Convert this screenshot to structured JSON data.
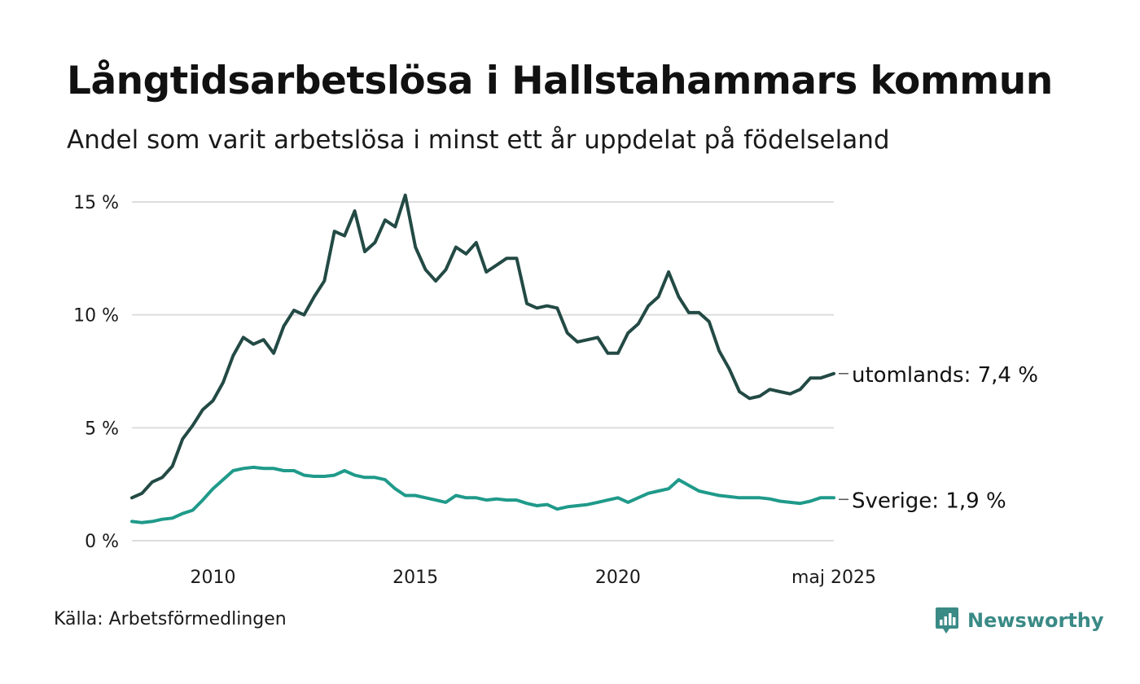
{
  "header": {
    "title": "Långtidsarbetslösa i Hallstahammars kommun",
    "subtitle": "Andel som varit arbetslösa i minst ett år uppdelat på födelseland"
  },
  "footer": {
    "source": "Källa: Arbetsförmedlingen",
    "brand": "Newsworthy"
  },
  "colors": {
    "utomlands": "#234a45",
    "sverige": "#1f9a8a",
    "grid": "#dddddd",
    "brand": "#3a8a86"
  },
  "icons": {
    "brand": "chart-bubble-icon"
  },
  "chart_data": {
    "type": "line",
    "title": "Långtidsarbetslösa i Hallstahammars kommun",
    "subtitle": "Andel som varit arbetslösa i minst ett år uppdelat på födelseland",
    "xlabel": "",
    "ylabel": "",
    "x_range": [
      2008.0,
      2025.33
    ],
    "ylim": [
      0,
      15
    ],
    "y_ticks": [
      0,
      5,
      10,
      15
    ],
    "y_tick_labels": [
      "0 %",
      "5 %",
      "10 %",
      "15 %"
    ],
    "x_ticks": [
      2010,
      2015,
      2020,
      2025.33
    ],
    "x_tick_labels": [
      "2010",
      "2015",
      "2020",
      "maj 2025"
    ],
    "grid": "horizontal",
    "legend": "end-of-line labels",
    "series": [
      {
        "key": "utomlands",
        "end_label": "utomlands: 7,4 %",
        "points": [
          [
            2008.0,
            1.9
          ],
          [
            2008.25,
            2.1
          ],
          [
            2008.5,
            2.6
          ],
          [
            2008.75,
            2.8
          ],
          [
            2009.0,
            3.3
          ],
          [
            2009.25,
            4.5
          ],
          [
            2009.5,
            5.1
          ],
          [
            2009.75,
            5.8
          ],
          [
            2010.0,
            6.2
          ],
          [
            2010.25,
            7.0
          ],
          [
            2010.5,
            8.2
          ],
          [
            2010.75,
            9.0
          ],
          [
            2011.0,
            8.7
          ],
          [
            2011.25,
            8.9
          ],
          [
            2011.5,
            8.3
          ],
          [
            2011.75,
            9.5
          ],
          [
            2012.0,
            10.2
          ],
          [
            2012.25,
            10.0
          ],
          [
            2012.5,
            10.8
          ],
          [
            2012.75,
            11.5
          ],
          [
            2013.0,
            13.7
          ],
          [
            2013.25,
            13.5
          ],
          [
            2013.5,
            14.6
          ],
          [
            2013.75,
            12.8
          ],
          [
            2014.0,
            13.2
          ],
          [
            2014.25,
            14.2
          ],
          [
            2014.5,
            13.9
          ],
          [
            2014.75,
            15.3
          ],
          [
            2015.0,
            13.0
          ],
          [
            2015.25,
            12.0
          ],
          [
            2015.5,
            11.5
          ],
          [
            2015.75,
            12.0
          ],
          [
            2016.0,
            13.0
          ],
          [
            2016.25,
            12.7
          ],
          [
            2016.5,
            13.2
          ],
          [
            2016.75,
            11.9
          ],
          [
            2017.0,
            12.2
          ],
          [
            2017.25,
            12.5
          ],
          [
            2017.5,
            12.5
          ],
          [
            2017.75,
            10.5
          ],
          [
            2018.0,
            10.3
          ],
          [
            2018.25,
            10.4
          ],
          [
            2018.5,
            10.3
          ],
          [
            2018.75,
            9.2
          ],
          [
            2019.0,
            8.8
          ],
          [
            2019.25,
            8.9
          ],
          [
            2019.5,
            9.0
          ],
          [
            2019.75,
            8.3
          ],
          [
            2020.0,
            8.3
          ],
          [
            2020.25,
            9.2
          ],
          [
            2020.5,
            9.6
          ],
          [
            2020.75,
            10.4
          ],
          [
            2021.0,
            10.8
          ],
          [
            2021.25,
            11.9
          ],
          [
            2021.5,
            10.8
          ],
          [
            2021.75,
            10.1
          ],
          [
            2022.0,
            10.1
          ],
          [
            2022.25,
            9.7
          ],
          [
            2022.5,
            8.4
          ],
          [
            2022.75,
            7.6
          ],
          [
            2023.0,
            6.6
          ],
          [
            2023.25,
            6.3
          ],
          [
            2023.5,
            6.4
          ],
          [
            2023.75,
            6.7
          ],
          [
            2024.0,
            6.6
          ],
          [
            2024.25,
            6.5
          ],
          [
            2024.5,
            6.7
          ],
          [
            2024.75,
            7.2
          ],
          [
            2025.0,
            7.2
          ],
          [
            2025.33,
            7.4
          ]
        ]
      },
      {
        "key": "sverige",
        "end_label": "Sverige: 1,9 %",
        "points": [
          [
            2008.0,
            0.85
          ],
          [
            2008.25,
            0.8
          ],
          [
            2008.5,
            0.85
          ],
          [
            2008.75,
            0.95
          ],
          [
            2009.0,
            1.0
          ],
          [
            2009.25,
            1.2
          ],
          [
            2009.5,
            1.35
          ],
          [
            2009.75,
            1.8
          ],
          [
            2010.0,
            2.3
          ],
          [
            2010.25,
            2.7
          ],
          [
            2010.5,
            3.1
          ],
          [
            2010.75,
            3.2
          ],
          [
            2011.0,
            3.25
          ],
          [
            2011.25,
            3.2
          ],
          [
            2011.5,
            3.2
          ],
          [
            2011.75,
            3.1
          ],
          [
            2012.0,
            3.1
          ],
          [
            2012.25,
            2.9
          ],
          [
            2012.5,
            2.85
          ],
          [
            2012.75,
            2.85
          ],
          [
            2013.0,
            2.9
          ],
          [
            2013.25,
            3.1
          ],
          [
            2013.5,
            2.9
          ],
          [
            2013.75,
            2.8
          ],
          [
            2014.0,
            2.8
          ],
          [
            2014.25,
            2.7
          ],
          [
            2014.5,
            2.3
          ],
          [
            2014.75,
            2.0
          ],
          [
            2015.0,
            2.0
          ],
          [
            2015.25,
            1.9
          ],
          [
            2015.5,
            1.8
          ],
          [
            2015.75,
            1.7
          ],
          [
            2016.0,
            2.0
          ],
          [
            2016.25,
            1.9
          ],
          [
            2016.5,
            1.9
          ],
          [
            2016.75,
            1.8
          ],
          [
            2017.0,
            1.85
          ],
          [
            2017.25,
            1.8
          ],
          [
            2017.5,
            1.8
          ],
          [
            2017.75,
            1.65
          ],
          [
            2018.0,
            1.55
          ],
          [
            2018.25,
            1.6
          ],
          [
            2018.5,
            1.4
          ],
          [
            2018.75,
            1.5
          ],
          [
            2019.0,
            1.55
          ],
          [
            2019.25,
            1.6
          ],
          [
            2019.5,
            1.7
          ],
          [
            2019.75,
            1.8
          ],
          [
            2020.0,
            1.9
          ],
          [
            2020.25,
            1.7
          ],
          [
            2020.5,
            1.9
          ],
          [
            2020.75,
            2.1
          ],
          [
            2021.0,
            2.2
          ],
          [
            2021.25,
            2.3
          ],
          [
            2021.5,
            2.7
          ],
          [
            2021.75,
            2.45
          ],
          [
            2022.0,
            2.2
          ],
          [
            2022.25,
            2.1
          ],
          [
            2022.5,
            2.0
          ],
          [
            2022.75,
            1.95
          ],
          [
            2023.0,
            1.9
          ],
          [
            2023.25,
            1.9
          ],
          [
            2023.5,
            1.9
          ],
          [
            2023.75,
            1.85
          ],
          [
            2024.0,
            1.75
          ],
          [
            2024.25,
            1.7
          ],
          [
            2024.5,
            1.65
          ],
          [
            2024.75,
            1.75
          ],
          [
            2025.0,
            1.9
          ],
          [
            2025.33,
            1.9
          ]
        ]
      }
    ]
  }
}
